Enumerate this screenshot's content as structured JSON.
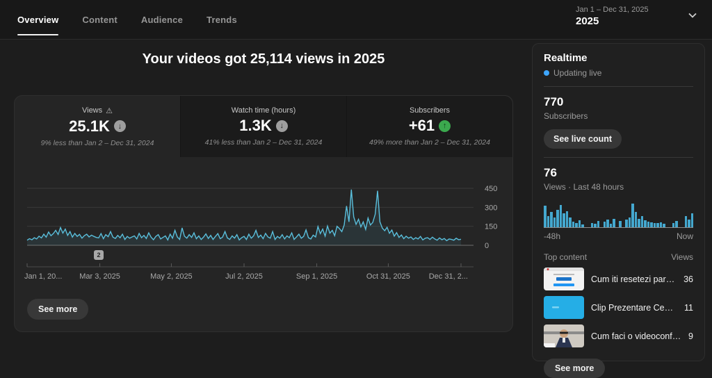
{
  "header": {
    "tabs": [
      {
        "label": "Overview"
      },
      {
        "label": "Content"
      },
      {
        "label": "Audience"
      },
      {
        "label": "Trends"
      }
    ],
    "date_range": "Jan 1 – Dec 31, 2025",
    "date_year": "2025"
  },
  "main": {
    "title": "Your videos got 25,114 views in 2025",
    "metrics": [
      {
        "label": "Views",
        "warning_icon": "⚠",
        "value": "25.1K",
        "trend": "down",
        "trend_icon": "↓",
        "compare": "9% less than Jan 2 – Dec 31, 2024"
      },
      {
        "label": "Watch time (hours)",
        "value": "1.3K",
        "trend": "down",
        "trend_icon": "↓",
        "compare": "41% less than Jan 2 – Dec 31, 2024"
      },
      {
        "label": "Subscribers",
        "value": "+61",
        "trend": "up",
        "trend_icon": "↑",
        "compare": "49% more than Jan 2 – Dec 31, 2024"
      }
    ],
    "annotation_badge": "2",
    "see_more_label": "See more"
  },
  "chart_data": [
    {
      "type": "line",
      "title": "Daily views Jan 1 – Dec 31, 2025",
      "ylabel": "Views",
      "ylim": [
        0,
        450
      ],
      "y_ticks": [
        450,
        300,
        150,
        0
      ],
      "x_axis_labels": [
        "Jan 1, 20...",
        "Mar 3, 2025",
        "May 2, 2025",
        "Jul 2, 2025",
        "Sep 1, 2025",
        "Oct 31, 2025",
        "Dec 31, 2..."
      ],
      "tick_days": [
        0,
        61,
        121,
        182,
        243,
        303,
        364
      ],
      "x_range_days": [
        0,
        364
      ],
      "line_color": "#5abfdc",
      "grid": true,
      "values": [
        40,
        52,
        44,
        60,
        50,
        72,
        58,
        88,
        64,
        105,
        76,
        92,
        118,
        85,
        140,
        96,
        128,
        78,
        108,
        64,
        94,
        70,
        86,
        56,
        76,
        88,
        66,
        80,
        70,
        62,
        58,
        92,
        52,
        84,
        68,
        108,
        64,
        54,
        78,
        60,
        88,
        46,
        70,
        56,
        66,
        74,
        50,
        94,
        60,
        78,
        54,
        98,
        64,
        44,
        70,
        84,
        50,
        62,
        74,
        42,
        88,
        56,
        118,
        66,
        46,
        138,
        72,
        56,
        84,
        62,
        98,
        52,
        74,
        46,
        64,
        90,
        54,
        78,
        46,
        70,
        92,
        52,
        64,
        108,
        58,
        46,
        74,
        56,
        84,
        42,
        60,
        70,
        46,
        88,
        56,
        74,
        118,
        62,
        80,
        52,
        94,
        66,
        56,
        108,
        46,
        70,
        56,
        84,
        50,
        74,
        60,
        98,
        46,
        66,
        88,
        56,
        70,
        122,
        60,
        50,
        80,
        66,
        148,
        92,
        128,
        72,
        152,
        96,
        118,
        76,
        150,
        132,
        108,
        160,
        310,
        185,
        440,
        225,
        165,
        205,
        145,
        185,
        125,
        215,
        160,
        180,
        245,
        430,
        185,
        135,
        115,
        142,
        95,
        120,
        72,
        100,
        62,
        82,
        52,
        72,
        56,
        66,
        46,
        60,
        50,
        70,
        42,
        56,
        60,
        46,
        64,
        50,
        40,
        58,
        44,
        54,
        36,
        50,
        46,
        40,
        56,
        44,
        48
      ]
    },
    {
      "type": "bar",
      "title": "Views · Last 48 hours",
      "x_labels": [
        "-48h",
        "Now"
      ],
      "bar_color": "#44a8cf",
      "values": [
        85,
        45,
        60,
        40,
        70,
        90,
        55,
        65,
        38,
        22,
        18,
        28,
        10,
        0,
        0,
        18,
        14,
        26,
        0,
        22,
        30,
        14,
        34,
        0,
        26,
        0,
        30,
        40,
        95,
        60,
        34,
        45,
        28,
        22,
        20,
        16,
        16,
        20,
        14,
        0,
        0,
        18,
        26,
        0,
        0,
        45,
        30,
        55
      ]
    }
  ],
  "realtime": {
    "title": "Realtime",
    "status": "Updating live",
    "subscribers": "770",
    "subscribers_label": "Subscribers",
    "live_count_label": "See live count",
    "views": "76",
    "views_label": "Views · Last 48 hours",
    "axis_left": "-48h",
    "axis_right": "Now",
    "top_content_label": "Top content",
    "views_col_label": "Views",
    "items": [
      {
        "title": "Cum iti resetezi parola daca ...",
        "views": "36"
      },
      {
        "title": "Clip Prezentare CeL 2020 RO",
        "views": "11"
      },
      {
        "title": "Cum faci o videoconferință c...",
        "views": "9"
      }
    ],
    "see_more_label": "See more"
  }
}
